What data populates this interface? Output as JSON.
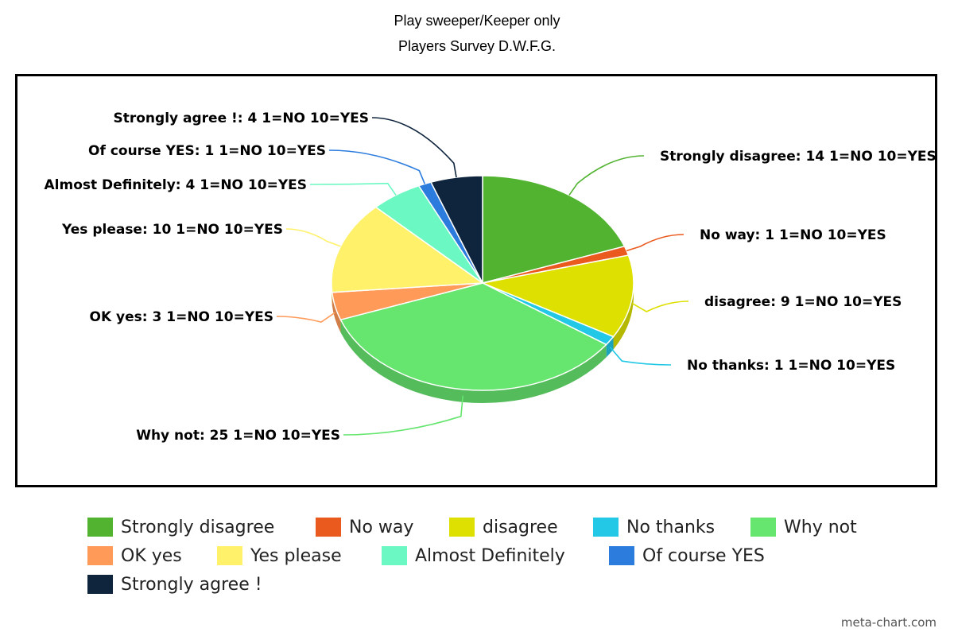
{
  "chart_data": {
    "type": "pie",
    "style": "3d",
    "title": "Play sweeper/Keeper only",
    "subtitle": "Players Survey D.W.F.G.",
    "label_suffix": "1=NO 10=YES",
    "legend_position": "bottom",
    "slices": [
      {
        "name": "Strongly disagree",
        "value": 14,
        "color": "#52b331",
        "label": "Strongly disagree: 14 1=NO 10=YES"
      },
      {
        "name": "No way",
        "value": 1,
        "color": "#ea5a1e",
        "label": "No way: 1 1=NO 10=YES"
      },
      {
        "name": "disagree",
        "value": 9,
        "color": "#dde000",
        "label": "disagree: 9 1=NO 10=YES"
      },
      {
        "name": "No thanks",
        "value": 1,
        "color": "#22c8e5",
        "label": "No thanks: 1 1=NO 10=YES"
      },
      {
        "name": "Why not",
        "value": 25,
        "color": "#66e56f",
        "label": "Why not: 25 1=NO 10=YES"
      },
      {
        "name": "OK yes",
        "value": 3,
        "color": "#ff9a58",
        "label": "OK yes: 3 1=NO 10=YES"
      },
      {
        "name": "Yes please",
        "value": 10,
        "color": "#fff16a",
        "label": "Yes please: 10 1=NO 10=YES"
      },
      {
        "name": "Almost Definitely",
        "value": 4,
        "color": "#6cf8c3",
        "label": "Almost Definitely: 4 1=NO 10=YES"
      },
      {
        "name": "Of course YES",
        "value": 1,
        "color": "#2c7cde",
        "label": "Of course YES: 1 1=NO 10=YES"
      },
      {
        "name": "Strongly agree !",
        "value": 4,
        "color": "#0f253d",
        "label": "Strongly agree !: 4 1=NO 10=YES"
      }
    ]
  },
  "watermark": "meta-chart.com"
}
